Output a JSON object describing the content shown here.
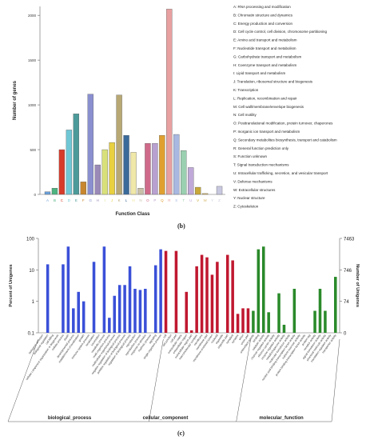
{
  "chart_data": [
    {
      "type": "bar",
      "panel": "(b)",
      "xlabel": "Function Class",
      "ylabel": "Number of genes",
      "ylim": [
        0,
        2100
      ],
      "yticks": [
        0,
        500,
        1000,
        1500,
        2000
      ],
      "categories": [
        "A",
        "B",
        "C",
        "D",
        "E",
        "F",
        "G",
        "H",
        "I",
        "J",
        "K",
        "L",
        "M",
        "N",
        "O",
        "P",
        "Q",
        "R",
        "S",
        "T",
        "U",
        "V",
        "W",
        "Y",
        "Z"
      ],
      "values": [
        30,
        70,
        500,
        720,
        900,
        140,
        1120,
        330,
        500,
        580,
        1110,
        660,
        470,
        70,
        570,
        570,
        660,
        2070,
        670,
        490,
        300,
        80,
        10,
        0,
        90
      ],
      "colors": [
        "#6a9fd8",
        "#4db380",
        "#d83a2a",
        "#6fc7d6",
        "#4c9b9a",
        "#c8872e",
        "#8a8fd0",
        "#9a8ab8",
        "#d8e07a",
        "#e8d040",
        "#b8a874",
        "#3a6a9a",
        "#f0e8a8",
        "#c8c0a8",
        "#d06a8a",
        "#b8a0d0",
        "#e0a030",
        "#e8a0a0",
        "#a8b8e0",
        "#9ad0b0",
        "#c0a8d8",
        "#c8a838",
        "#d8b868",
        "#c8d0e0",
        "#c8c8e0"
      ],
      "legend": [
        "A: RNA processing and modification",
        "B: Chromatin structure and dynamics",
        "C: Energy production and conversion",
        "D: Cell cycle control, cell division, chromosome partitioning",
        "E: Amino acid transport and metabolism",
        "F: Nucleotide transport and metabolism",
        "G: Carbohydrate transport and metabolism",
        "H: Coenzyme transport and metabolism",
        "I: Lipid transport and metabolism",
        "J: Translation, ribosomal structure and biogenesis",
        "K: Transcription",
        "L: Replication, recombination and repair",
        "M: Cell wall/membrane/envelope biogenesis",
        "N: Cell motility",
        "O: Posttranslational modification, protein turnover, chaperones",
        "P: Inorganic ion transport and metabolism",
        "Q: Secondary metabolites biosynthesis, transport and catabolism",
        "R: General function prediction only",
        "S: Function unknown",
        "T: Signal transduction mechanisms",
        "U: Intracellular trafficking, secretion, and vesicular transport",
        "V: Defense mechanisms",
        "W: Extracellular structures",
        "Y: Nuclear structure",
        "Z: Cytoskeleton"
      ]
    },
    {
      "type": "bar",
      "panel": "(c)",
      "yscale": "log",
      "ylabel": "Percent of Unigenes",
      "ylabel_right": "Number of Unigenes",
      "ylim": [
        0.1,
        100
      ],
      "yticks": [
        "100",
        "10",
        "1",
        "0.1"
      ],
      "yticks_right": [
        "7463",
        "746",
        "74",
        "0"
      ],
      "groups": [
        {
          "name": "biological_process",
          "color": "#3a50d8",
          "labels": [
            "biological adhesion",
            "biological regulation",
            "cell killing",
            "cellular component organization or biogenesis",
            "cellular process",
            "death",
            "developmental process",
            "establishment of localization",
            "growth",
            "immune system process",
            "localization",
            "locomotion",
            "metabolic process",
            "multi-organism process",
            "multicellular organismal process",
            "negative regulation of biological process",
            "positive regulation of biological process",
            "regulation of biological process",
            "reproduction",
            "reproductive process",
            "response to stimulus",
            "rhythmic process",
            "signaling",
            "single-organism process"
          ],
          "values": [
            0,
            15,
            0,
            0,
            15,
            55,
            0.6,
            2,
            1,
            0,
            18,
            0,
            55,
            0.3,
            1.5,
            3.3,
            3.3,
            13,
            2.5,
            2.3,
            2.5,
            0,
            14,
            45
          ]
        },
        {
          "name": "cellular_component",
          "color": "#c01830",
          "labels": [
            "cell",
            "cell junction",
            "cell part",
            "extracellular matrix",
            "extracellular region",
            "extracellular region part",
            "macromolecular complex",
            "membrane",
            "membrane part",
            "membrane-enclosed lumen",
            "nucleoid",
            "organelle",
            "organelle part",
            "symplast",
            "synapse",
            "virion",
            "virion part"
          ],
          "values": [
            40,
            0,
            40,
            0,
            2,
            0.12,
            13,
            30,
            25,
            7,
            18,
            0,
            30,
            20,
            0.4,
            0.6,
            0.6
          ]
        },
        {
          "name": "molecular_function",
          "color": "#2a8a2a",
          "labels": [
            "antioxidant activity",
            "binding",
            "catalytic activity",
            "channel regulator activity",
            "electron carrier activity",
            "enzyme regulator activity",
            "metallochaperone activity",
            "molecular transducer activity",
            "nucleic acid binding transcription factor activity",
            "nutrient reservoir activity",
            "protein binding transcription factor activity",
            "protein tag",
            "receptor activity",
            "signal transducer activity",
            "structural molecule activity",
            "translation regulator activity",
            "transporter activity"
          ],
          "values": [
            0.5,
            45,
            55,
            0.45,
            0,
            1.8,
            0.18,
            0,
            2.5,
            0,
            0,
            0,
            0.5,
            2.5,
            0.5,
            0,
            6
          ]
        }
      ]
    }
  ]
}
